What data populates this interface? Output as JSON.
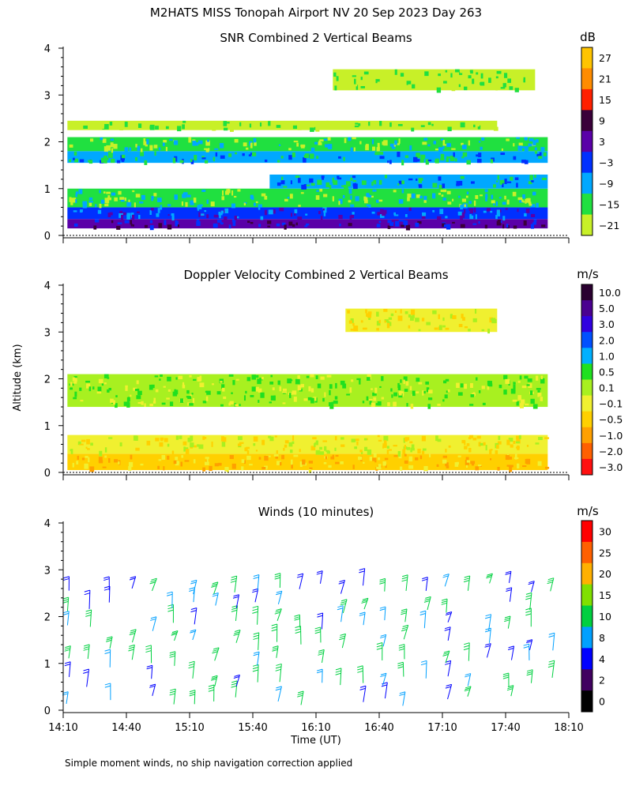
{
  "header": {
    "title": "M2HATS MISS Tonopah Airport NV  20 Sep 2023 Day 263"
  },
  "footer": {
    "note": "Simple moment winds, no ship navigation correction applied"
  },
  "shared": {
    "xlabel": "Time (UT)",
    "ylabel": "Altitude (km)",
    "xticks": [
      "14:10",
      "14:40",
      "15:10",
      "15:40",
      "16:10",
      "16:40",
      "17:10",
      "17:40",
      "18:10"
    ],
    "yticks": [
      "0",
      "1",
      "2",
      "3",
      "4"
    ],
    "xlim_hours": [
      14.1667,
      18.1667
    ],
    "ylim_km": [
      0,
      4
    ]
  },
  "chart_data": [
    {
      "type": "heatmap",
      "title": "SNR Combined 2 Vertical Beams",
      "units": "dB",
      "colorbar_labels": [
        "27",
        "21",
        "15",
        "9",
        "3",
        "−3",
        "−9",
        "−15",
        "−21"
      ],
      "colorbar_colors": [
        "#ffc400",
        "#ff8c00",
        "#ff2000",
        "#3a003a",
        "#5a00a8",
        "#0030ff",
        "#00a8ff",
        "#20e040",
        "#c8f028"
      ],
      "layers": [
        {
          "alt_bottom": 0.15,
          "alt_top": 0.35,
          "value_db": 3,
          "time_start": 14.2,
          "time_end": 18.0
        },
        {
          "alt_bottom": 0.35,
          "alt_top": 0.6,
          "value_db": -3,
          "time_start": 14.2,
          "time_end": 18.0
        },
        {
          "alt_bottom": 0.6,
          "alt_top": 1.0,
          "value_db": -15,
          "time_start": 14.2,
          "time_end": 18.0
        },
        {
          "alt_bottom": 1.0,
          "alt_top": 1.3,
          "value_db": -9,
          "time_start": 15.8,
          "time_end": 18.0
        },
        {
          "alt_bottom": 1.55,
          "alt_top": 1.8,
          "value_db": -9,
          "time_start": 14.2,
          "time_end": 18.0
        },
        {
          "alt_bottom": 1.8,
          "alt_top": 2.1,
          "value_db": -15,
          "time_start": 14.2,
          "time_end": 18.0
        },
        {
          "alt_bottom": 2.25,
          "alt_top": 2.45,
          "value_db": -21,
          "time_start": 14.2,
          "time_end": 17.6
        },
        {
          "alt_bottom": 3.1,
          "alt_top": 3.55,
          "value_db": -21,
          "time_start": 16.3,
          "time_end": 17.9
        }
      ]
    },
    {
      "type": "heatmap",
      "title": "Doppler Velocity Combined 2 Vertical Beams",
      "units": "m/s",
      "colorbar_labels": [
        "10.0",
        "5.0",
        "3.0",
        "2.0",
        "1.0",
        "0.5",
        "0.1",
        "−0.1",
        "−0.5",
        "−1.0",
        "−2.0",
        "−3.0"
      ],
      "colorbar_colors": [
        "#2a0030",
        "#4a0090",
        "#3000e0",
        "#0050ff",
        "#00b0ff",
        "#20e020",
        "#a8f020",
        "#f0f030",
        "#ffd000",
        "#ffa000",
        "#ff6000",
        "#ff1010"
      ],
      "layers": [
        {
          "alt_bottom": 0.05,
          "alt_top": 0.4,
          "value_ms": -0.5,
          "time_start": 14.2,
          "time_end": 18.0
        },
        {
          "alt_bottom": 0.4,
          "alt_top": 0.8,
          "value_ms": -0.1,
          "time_start": 14.2,
          "time_end": 18.0
        },
        {
          "alt_bottom": 1.4,
          "alt_top": 2.1,
          "value_ms": 0.1,
          "time_start": 14.2,
          "time_end": 18.0
        },
        {
          "alt_bottom": 3.0,
          "alt_top": 3.5,
          "value_ms": -0.1,
          "time_start": 16.4,
          "time_end": 17.6
        }
      ]
    },
    {
      "type": "scatter",
      "subtype": "wind-barbs",
      "title": "Winds (10 minutes)",
      "units": "m/s",
      "colorbar_labels": [
        "30",
        "25",
        "20",
        "15",
        "10",
        "8",
        "4",
        "2",
        "0"
      ],
      "colorbar_colors": [
        "#ff0000",
        "#ff6000",
        "#ffb000",
        "#80e000",
        "#00d040",
        "#00a0ff",
        "#0000ff",
        "#400060",
        "#000000"
      ],
      "interval_minutes": 10,
      "altitudes_km": [
        0.2,
        0.6,
        1.0,
        1.4,
        1.8,
        2.2,
        2.6
      ],
      "typical_speed_ms": 6,
      "typical_direction": "westerly"
    }
  ]
}
